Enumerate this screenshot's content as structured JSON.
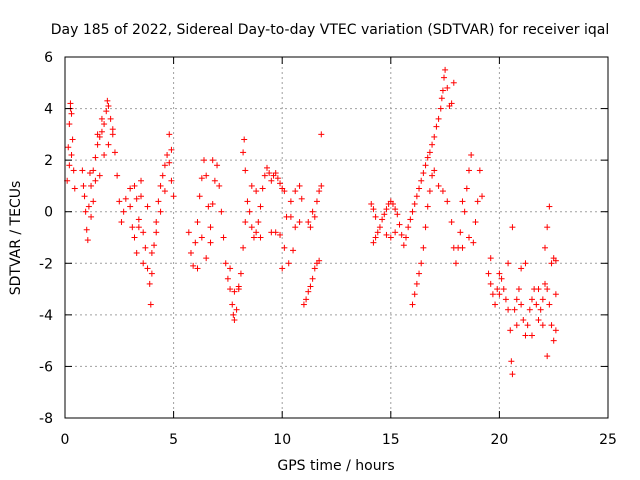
{
  "chart_data": {
    "type": "scatter",
    "title": "Day 185 of 2022, Sidereal Day-to-day VTEC variation (SDTVAR) for receiver iqal",
    "xlabel": "GPS time / hours",
    "ylabel": "SDTVAR / TECUs",
    "xlim": [
      0,
      25
    ],
    "ylim": [
      -8,
      6
    ],
    "xticks": [
      0,
      5,
      10,
      15,
      20,
      25
    ],
    "yticks": [
      -8,
      -6,
      -4,
      -2,
      0,
      2,
      4,
      6
    ],
    "xtick_labels": [
      "0",
      "5",
      "10",
      "15",
      "20",
      "25"
    ],
    "ytick_labels": [
      "-8",
      "-6",
      "-4",
      "-2",
      "0",
      "2",
      "4",
      "6"
    ],
    "grid": true,
    "marker": "+",
    "color": "#ff0000",
    "series": [
      {
        "name": "SDTVAR",
        "points": [
          [
            0.1,
            1.2
          ],
          [
            0.15,
            2.5
          ],
          [
            0.2,
            3.4
          ],
          [
            0.25,
            4.2
          ],
          [
            0.3,
            3.8
          ],
          [
            0.35,
            2.8
          ],
          [
            0.4,
            1.6
          ],
          [
            0.45,
            0.9
          ],
          [
            0.2,
            1.8
          ],
          [
            0.25,
            4.0
          ],
          [
            0.3,
            2.2
          ],
          [
            0.8,
            1.6
          ],
          [
            0.85,
            1.0
          ],
          [
            0.9,
            0.6
          ],
          [
            0.95,
            0.0
          ],
          [
            1.0,
            -0.7
          ],
          [
            1.05,
            -1.1
          ],
          [
            1.1,
            0.2
          ],
          [
            1.15,
            1.5
          ],
          [
            1.2,
            1.0
          ],
          [
            1.3,
            1.6
          ],
          [
            1.4,
            2.1
          ],
          [
            1.5,
            2.6
          ],
          [
            1.6,
            2.9
          ],
          [
            1.7,
            3.1
          ],
          [
            1.8,
            3.4
          ],
          [
            1.9,
            3.9
          ],
          [
            1.95,
            4.3
          ],
          [
            2.0,
            4.1
          ],
          [
            2.1,
            3.6
          ],
          [
            2.2,
            3.0
          ],
          [
            2.3,
            2.3
          ],
          [
            2.4,
            1.4
          ],
          [
            2.5,
            0.4
          ],
          [
            2.6,
            -0.4
          ],
          [
            2.7,
            0.0
          ],
          [
            2.8,
            0.5
          ],
          [
            1.6,
            1.4
          ],
          [
            1.8,
            2.2
          ],
          [
            2.0,
            2.6
          ],
          [
            2.2,
            3.2
          ],
          [
            1.5,
            3.0
          ],
          [
            1.7,
            3.6
          ],
          [
            1.4,
            1.2
          ],
          [
            1.3,
            0.4
          ],
          [
            1.2,
            -0.2
          ],
          [
            3.0,
            0.2
          ],
          [
            3.1,
            -0.6
          ],
          [
            3.2,
            -1.0
          ],
          [
            3.3,
            0.5
          ],
          [
            3.4,
            -0.3
          ],
          [
            3.5,
            0.6
          ],
          [
            3.6,
            -0.8
          ],
          [
            3.7,
            -1.4
          ],
          [
            3.8,
            -2.2
          ],
          [
            3.9,
            -2.8
          ],
          [
            3.95,
            -3.6
          ],
          [
            4.0,
            -2.4
          ],
          [
            4.1,
            -1.3
          ],
          [
            4.2,
            -0.4
          ],
          [
            4.3,
            0.4
          ],
          [
            4.4,
            1.0
          ],
          [
            4.5,
            1.4
          ],
          [
            4.6,
            1.8
          ],
          [
            4.7,
            2.2
          ],
          [
            4.8,
            1.9
          ],
          [
            4.9,
            1.2
          ],
          [
            5.0,
            0.6
          ],
          [
            4.8,
            3.0
          ],
          [
            4.9,
            2.4
          ],
          [
            3.5,
            1.2
          ],
          [
            3.2,
            1.0
          ],
          [
            3.0,
            0.9
          ],
          [
            3.3,
            -1.6
          ],
          [
            3.6,
            -2.0
          ],
          [
            4.0,
            -1.6
          ],
          [
            4.2,
            -0.8
          ],
          [
            4.4,
            0.0
          ],
          [
            3.8,
            0.2
          ],
          [
            3.4,
            -0.6
          ],
          [
            4.6,
            0.8
          ],
          [
            5.7,
            -0.8
          ],
          [
            5.8,
            -1.6
          ],
          [
            5.9,
            -2.1
          ],
          [
            6.0,
            -1.2
          ],
          [
            6.1,
            -0.4
          ],
          [
            6.2,
            0.6
          ],
          [
            6.3,
            1.3
          ],
          [
            6.4,
            2.0
          ],
          [
            6.5,
            1.4
          ],
          [
            6.6,
            0.2
          ],
          [
            6.7,
            -0.6
          ],
          [
            6.8,
            0.3
          ],
          [
            6.9,
            1.2
          ],
          [
            7.0,
            1.8
          ],
          [
            6.3,
            -1.0
          ],
          [
            6.5,
            -1.8
          ],
          [
            6.7,
            -1.2
          ],
          [
            6.1,
            -2.2
          ],
          [
            6.8,
            2.0
          ],
          [
            7.1,
            1.0
          ],
          [
            7.2,
            0.0
          ],
          [
            7.3,
            -1.0
          ],
          [
            7.4,
            -2.0
          ],
          [
            7.5,
            -2.6
          ],
          [
            7.6,
            -3.0
          ],
          [
            7.7,
            -3.6
          ],
          [
            7.75,
            -4.0
          ],
          [
            7.8,
            -4.2
          ],
          [
            7.9,
            -3.8
          ],
          [
            8.0,
            -3.0
          ],
          [
            8.1,
            -2.4
          ],
          [
            8.2,
            -1.4
          ],
          [
            8.3,
            -0.4
          ],
          [
            8.4,
            0.4
          ],
          [
            8.3,
            1.6
          ],
          [
            8.2,
            2.3
          ],
          [
            8.25,
            2.8
          ],
          [
            7.6,
            -2.2
          ],
          [
            7.8,
            -3.1
          ],
          [
            8.0,
            -2.9
          ],
          [
            8.5,
            0.0
          ],
          [
            8.6,
            -0.6
          ],
          [
            8.7,
            -1.0
          ],
          [
            8.8,
            -0.8
          ],
          [
            8.9,
            -0.4
          ],
          [
            9.0,
            0.2
          ],
          [
            9.1,
            0.9
          ],
          [
            9.2,
            1.4
          ],
          [
            9.3,
            1.7
          ],
          [
            9.0,
            -1.0
          ],
          [
            8.8,
            0.8
          ],
          [
            8.6,
            1.0
          ],
          [
            9.4,
            1.5
          ],
          [
            9.5,
            1.2
          ],
          [
            9.6,
            1.4
          ],
          [
            9.7,
            1.5
          ],
          [
            9.8,
            1.3
          ],
          [
            9.9,
            1.1
          ],
          [
            10.0,
            0.9
          ],
          [
            10.1,
            0.8
          ],
          [
            9.5,
            -0.8
          ],
          [
            9.7,
            -0.8
          ],
          [
            9.9,
            -0.9
          ],
          [
            10.1,
            -1.4
          ],
          [
            10.0,
            -2.2
          ],
          [
            10.3,
            -2.0
          ],
          [
            10.5,
            -1.5
          ],
          [
            10.2,
            -0.2
          ],
          [
            10.4,
            0.4
          ],
          [
            10.6,
            0.8
          ],
          [
            10.8,
            1.0
          ],
          [
            10.9,
            0.5
          ],
          [
            10.8,
            -0.4
          ],
          [
            10.6,
            -0.6
          ],
          [
            10.4,
            -0.2
          ],
          [
            11.0,
            -3.6
          ],
          [
            11.1,
            -3.4
          ],
          [
            11.2,
            -3.1
          ],
          [
            11.3,
            -2.9
          ],
          [
            11.4,
            -2.6
          ],
          [
            11.5,
            -2.2
          ],
          [
            11.6,
            -2.0
          ],
          [
            11.7,
            -1.9
          ],
          [
            11.2,
            -0.4
          ],
          [
            11.4,
            0.0
          ],
          [
            11.6,
            0.4
          ],
          [
            11.7,
            0.8
          ],
          [
            11.8,
            1.0
          ],
          [
            11.8,
            3.0
          ],
          [
            11.3,
            -0.6
          ],
          [
            11.5,
            -0.2
          ],
          [
            14.1,
            0.3
          ],
          [
            14.2,
            0.1
          ],
          [
            14.3,
            -0.2
          ],
          [
            14.2,
            -1.2
          ],
          [
            14.3,
            -1.0
          ],
          [
            14.4,
            -0.8
          ],
          [
            14.5,
            -0.6
          ],
          [
            14.6,
            -0.3
          ],
          [
            14.7,
            -0.1
          ],
          [
            14.8,
            0.1
          ],
          [
            14.9,
            0.3
          ],
          [
            15.0,
            0.4
          ],
          [
            15.1,
            0.3
          ],
          [
            15.2,
            0.1
          ],
          [
            15.3,
            -0.1
          ],
          [
            15.4,
            -0.5
          ],
          [
            15.5,
            -0.9
          ],
          [
            15.6,
            -1.3
          ],
          [
            15.7,
            -1.0
          ],
          [
            15.8,
            -0.6
          ],
          [
            15.9,
            -0.3
          ],
          [
            16.0,
            0.0
          ],
          [
            16.1,
            0.3
          ],
          [
            16.2,
            0.6
          ],
          [
            16.3,
            0.9
          ],
          [
            16.4,
            1.2
          ],
          [
            16.5,
            1.5
          ],
          [
            16.6,
            1.8
          ],
          [
            16.7,
            2.1
          ],
          [
            16.8,
            2.3
          ],
          [
            16.9,
            2.6
          ],
          [
            17.0,
            2.9
          ],
          [
            17.1,
            3.3
          ],
          [
            17.2,
            3.6
          ],
          [
            17.3,
            4.0
          ],
          [
            17.35,
            4.4
          ],
          [
            17.4,
            4.7
          ],
          [
            17.45,
            5.2
          ],
          [
            17.5,
            5.5
          ],
          [
            17.6,
            4.8
          ],
          [
            17.7,
            4.1
          ],
          [
            17.8,
            4.2
          ],
          [
            17.9,
            5.0
          ],
          [
            16.0,
            -3.6
          ],
          [
            16.1,
            -3.2
          ],
          [
            16.2,
            -2.8
          ],
          [
            16.3,
            -2.4
          ],
          [
            16.4,
            -2.0
          ],
          [
            16.5,
            -1.4
          ],
          [
            16.6,
            -0.6
          ],
          [
            16.7,
            0.2
          ],
          [
            16.8,
            0.8
          ],
          [
            16.9,
            1.4
          ],
          [
            17.0,
            1.6
          ],
          [
            17.2,
            1.0
          ],
          [
            17.4,
            0.8
          ],
          [
            17.6,
            0.4
          ],
          [
            17.8,
            -0.4
          ],
          [
            17.9,
            -1.4
          ],
          [
            18.0,
            -2.0
          ],
          [
            18.1,
            -1.4
          ],
          [
            18.2,
            -0.8
          ],
          [
            18.3,
            0.4
          ],
          [
            18.4,
            0.0
          ],
          [
            18.5,
            0.9
          ],
          [
            18.6,
            1.6
          ],
          [
            18.7,
            2.2
          ],
          [
            18.6,
            -1.0
          ],
          [
            18.8,
            -1.2
          ],
          [
            18.9,
            -0.4
          ],
          [
            19.0,
            0.4
          ],
          [
            19.1,
            1.6
          ],
          [
            19.2,
            0.6
          ],
          [
            18.3,
            -1.4
          ],
          [
            15.2,
            -0.8
          ],
          [
            15.0,
            -1.0
          ],
          [
            14.8,
            -0.9
          ],
          [
            19.5,
            -2.4
          ],
          [
            19.6,
            -2.8
          ],
          [
            19.7,
            -3.2
          ],
          [
            19.8,
            -3.6
          ],
          [
            19.9,
            -3.0
          ],
          [
            20.0,
            -2.4
          ],
          [
            20.1,
            -2.6
          ],
          [
            20.2,
            -3.0
          ],
          [
            20.3,
            -3.4
          ],
          [
            20.4,
            -3.8
          ],
          [
            20.5,
            -4.6
          ],
          [
            20.6,
            -6.3
          ],
          [
            20.55,
            -5.8
          ],
          [
            20.7,
            -3.8
          ],
          [
            20.8,
            -3.4
          ],
          [
            20.9,
            -3.0
          ],
          [
            21.0,
            -3.6
          ],
          [
            21.1,
            -4.2
          ],
          [
            21.2,
            -4.8
          ],
          [
            21.3,
            -4.4
          ],
          [
            21.4,
            -3.8
          ],
          [
            21.5,
            -3.4
          ],
          [
            21.6,
            -3.0
          ],
          [
            21.7,
            -3.6
          ],
          [
            21.8,
            -4.2
          ],
          [
            21.9,
            -3.8
          ],
          [
            22.0,
            -3.4
          ],
          [
            22.1,
            -2.8
          ],
          [
            22.2,
            -3.0
          ],
          [
            22.3,
            -3.6
          ],
          [
            22.4,
            -4.4
          ],
          [
            22.5,
            -5.0
          ],
          [
            22.6,
            -4.6
          ],
          [
            22.5,
            -1.8
          ],
          [
            22.6,
            -1.9
          ],
          [
            22.3,
            0.2
          ],
          [
            22.2,
            -0.6
          ],
          [
            22.1,
            -1.4
          ],
          [
            22.4,
            -2.0
          ],
          [
            20.6,
            -0.6
          ],
          [
            20.4,
            -2.0
          ],
          [
            19.6,
            -1.8
          ],
          [
            20.0,
            -3.2
          ],
          [
            21.0,
            -2.2
          ],
          [
            21.2,
            -2.0
          ],
          [
            21.8,
            -3.0
          ],
          [
            22.2,
            -5.6
          ],
          [
            22.0,
            -4.4
          ],
          [
            20.8,
            -4.4
          ],
          [
            21.5,
            -4.8
          ],
          [
            22.6,
            -3.2
          ]
        ]
      }
    ]
  }
}
